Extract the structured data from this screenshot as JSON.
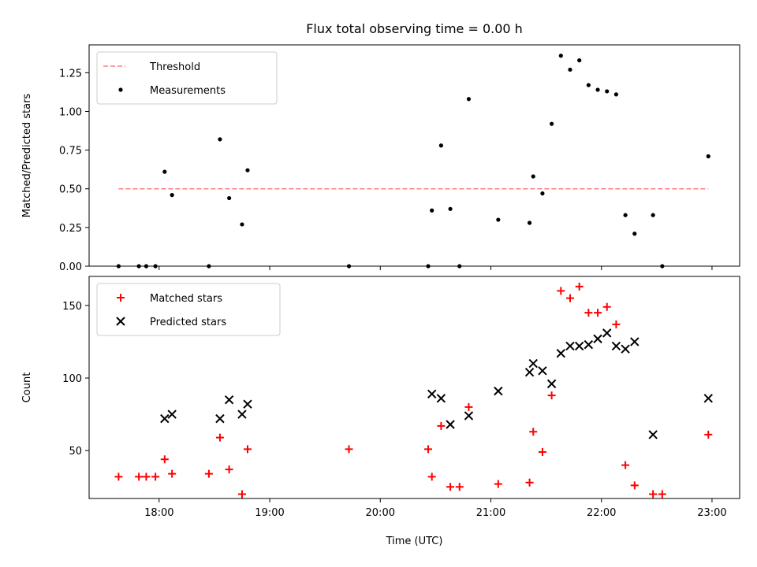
{
  "chart_data": [
    {
      "type": "scatter",
      "title": "Flux total observing time = 0.00 h",
      "xlabel": "",
      "ylabel": "Matched/Predicted stars",
      "xlim": [
        "17:22",
        "23:15"
      ],
      "ylim": [
        0,
        1.43
      ],
      "x_ticks": [
        "18:00",
        "19:00",
        "20:00",
        "21:00",
        "22:00",
        "23:00"
      ],
      "y_ticks": [
        "0.00",
        "0.25",
        "0.50",
        "0.75",
        "1.00",
        "1.25"
      ],
      "legend_position": "upper-left",
      "series": [
        {
          "name": "Threshold",
          "style": "dashed-line",
          "color": "#ff7f7f",
          "points": [
            [
              "17:38",
              0.5
            ],
            [
              "22:58",
              0.5
            ]
          ]
        },
        {
          "name": "Measurements",
          "style": "dot",
          "color": "#000000",
          "points": [
            [
              "17:38",
              0.0
            ],
            [
              "17:49",
              0.0
            ],
            [
              "17:53",
              0.0
            ],
            [
              "17:58",
              0.0
            ],
            [
              "18:03",
              0.61
            ],
            [
              "18:07",
              0.46
            ],
            [
              "18:27",
              0.0
            ],
            [
              "18:33",
              0.82
            ],
            [
              "18:38",
              0.44
            ],
            [
              "18:45",
              0.27
            ],
            [
              "18:48",
              0.62
            ],
            [
              "19:43",
              0.0
            ],
            [
              "20:26",
              0.0
            ],
            [
              "20:28",
              0.36
            ],
            [
              "20:33",
              0.78
            ],
            [
              "20:38",
              0.37
            ],
            [
              "20:43",
              0.0
            ],
            [
              "20:48",
              1.08
            ],
            [
              "21:04",
              0.3
            ],
            [
              "21:21",
              0.28
            ],
            [
              "21:23",
              0.58
            ],
            [
              "21:28",
              0.47
            ],
            [
              "21:33",
              0.92
            ],
            [
              "21:38",
              1.36
            ],
            [
              "21:43",
              1.27
            ],
            [
              "21:48",
              1.33
            ],
            [
              "21:53",
              1.17
            ],
            [
              "21:58",
              1.14
            ],
            [
              "22:03",
              1.13
            ],
            [
              "22:08",
              1.11
            ],
            [
              "22:13",
              0.33
            ],
            [
              "22:18",
              0.21
            ],
            [
              "22:28",
              0.33
            ],
            [
              "22:33",
              0.0
            ],
            [
              "22:58",
              0.71
            ]
          ]
        }
      ]
    },
    {
      "type": "scatter",
      "title": "",
      "xlabel": "Time (UTC)",
      "ylabel": "Count",
      "xlim": [
        "17:22",
        "23:15"
      ],
      "ylim": [
        17,
        170
      ],
      "x_ticks": [
        "18:00",
        "19:00",
        "20:00",
        "21:00",
        "22:00",
        "23:00"
      ],
      "y_ticks": [
        "50",
        "100",
        "150"
      ],
      "legend_position": "upper-left",
      "series": [
        {
          "name": "Matched stars",
          "style": "plus",
          "color": "#ff0000",
          "points": [
            [
              "17:38",
              32
            ],
            [
              "17:49",
              32
            ],
            [
              "17:53",
              32
            ],
            [
              "17:58",
              32
            ],
            [
              "18:03",
              44
            ],
            [
              "18:07",
              34
            ],
            [
              "18:27",
              34
            ],
            [
              "18:33",
              59
            ],
            [
              "18:38",
              37
            ],
            [
              "18:45",
              20
            ],
            [
              "18:48",
              51
            ],
            [
              "19:43",
              51
            ],
            [
              "20:26",
              51
            ],
            [
              "20:28",
              32
            ],
            [
              "20:33",
              67
            ],
            [
              "20:38",
              25
            ],
            [
              "20:43",
              25
            ],
            [
              "20:48",
              80
            ],
            [
              "21:04",
              27
            ],
            [
              "21:21",
              28
            ],
            [
              "21:23",
              63
            ],
            [
              "21:28",
              49
            ],
            [
              "21:33",
              88
            ],
            [
              "21:38",
              160
            ],
            [
              "21:43",
              155
            ],
            [
              "21:48",
              163
            ],
            [
              "21:53",
              145
            ],
            [
              "21:58",
              145
            ],
            [
              "22:03",
              149
            ],
            [
              "22:08",
              137
            ],
            [
              "22:13",
              40
            ],
            [
              "22:18",
              26
            ],
            [
              "22:28",
              20
            ],
            [
              "22:33",
              20
            ],
            [
              "22:58",
              61
            ]
          ]
        },
        {
          "name": "Predicted stars",
          "style": "x",
          "color": "#000000",
          "points": [
            [
              "18:03",
              72
            ],
            [
              "18:07",
              75
            ],
            [
              "18:33",
              72
            ],
            [
              "18:38",
              85
            ],
            [
              "18:45",
              75
            ],
            [
              "18:48",
              82
            ],
            [
              "20:28",
              89
            ],
            [
              "20:33",
              86
            ],
            [
              "20:38",
              68
            ],
            [
              "20:48",
              74
            ],
            [
              "21:04",
              91
            ],
            [
              "21:21",
              104
            ],
            [
              "21:23",
              110
            ],
            [
              "21:28",
              105
            ],
            [
              "21:33",
              96
            ],
            [
              "21:38",
              117
            ],
            [
              "21:43",
              122
            ],
            [
              "21:48",
              122
            ],
            [
              "21:53",
              123
            ],
            [
              "21:58",
              127
            ],
            [
              "22:03",
              131
            ],
            [
              "22:08",
              122
            ],
            [
              "22:13",
              120
            ],
            [
              "22:18",
              125
            ],
            [
              "22:28",
              61
            ],
            [
              "22:58",
              86
            ]
          ]
        }
      ]
    }
  ]
}
